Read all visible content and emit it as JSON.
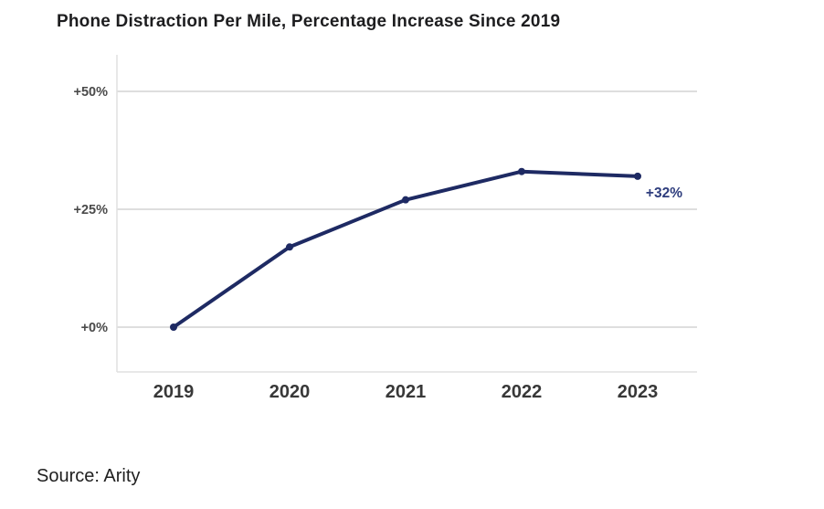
{
  "chart_data": {
    "type": "line",
    "title": "Phone Distraction Per Mile, Percentage Increase Since 2019",
    "xlabel": "",
    "ylabel": "",
    "categories": [
      "2019",
      "2020",
      "2021",
      "2022",
      "2023"
    ],
    "series": [
      {
        "name": "Phone distraction per mile, % increase since 2019",
        "values": [
          0,
          17,
          27,
          33,
          32
        ]
      }
    ],
    "y_ticks": [
      {
        "label": "+50%",
        "value": 50
      },
      {
        "label": "+25%",
        "value": 25
      },
      {
        "label": "+0%",
        "value": 0
      }
    ],
    "ylim": [
      -9.5,
      57.7
    ],
    "grid": "horizontal",
    "legend": "none",
    "annotation": {
      "text": "+32%",
      "category": "2023",
      "value": 32
    },
    "colors": {
      "line": "#1e2a63",
      "marker": "#1e2a63",
      "annotation": "#2e3d7d",
      "gridline": "#d4d4d4",
      "axis": "#e0e0e0",
      "y_tick_text": "#4a4a4a",
      "x_tick_text": "#383838",
      "title_text": "#1d1d1f"
    }
  },
  "source": {
    "text": "Source: Arity"
  }
}
